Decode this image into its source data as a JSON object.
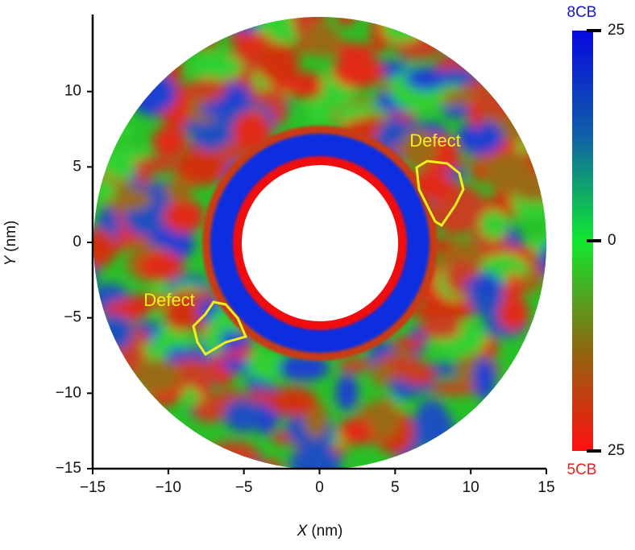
{
  "chart_data": {
    "type": "heatmap",
    "xlabel": {
      "symbol": "X",
      "unit": "(nm)"
    },
    "ylabel": {
      "symbol": "Y",
      "unit": "(nm)"
    },
    "xlim": [
      -15,
      15
    ],
    "xticks": [
      {
        "value": -15,
        "label": "−15"
      },
      {
        "value": -10,
        "label": "−10"
      },
      {
        "value": -5,
        "label": "−5"
      },
      0,
      5,
      10,
      15
    ],
    "ylim": [
      -15,
      15
    ],
    "yticks": [
      {
        "value": -15,
        "label": "−15"
      },
      {
        "value": -10,
        "label": "−10"
      },
      {
        "value": -5,
        "label": "−5"
      },
      0,
      5,
      10
    ],
    "annotations": [
      "Defect",
      "Defect"
    ],
    "annotation_color": "#f0f020",
    "colorbar": {
      "top_label": "8CB",
      "top_color": "#1515d0",
      "bottom_label": "5CB",
      "bottom_color": "#e82020",
      "lim": [
        -25,
        25
      ],
      "ticks": [
        {
          "value": -25,
          "label": "25"
        },
        0,
        25
      ],
      "colormap": [
        "#0808e0",
        "#1060a8",
        "#10e830",
        "#8a6a10",
        "#ff1010"
      ]
    }
  }
}
